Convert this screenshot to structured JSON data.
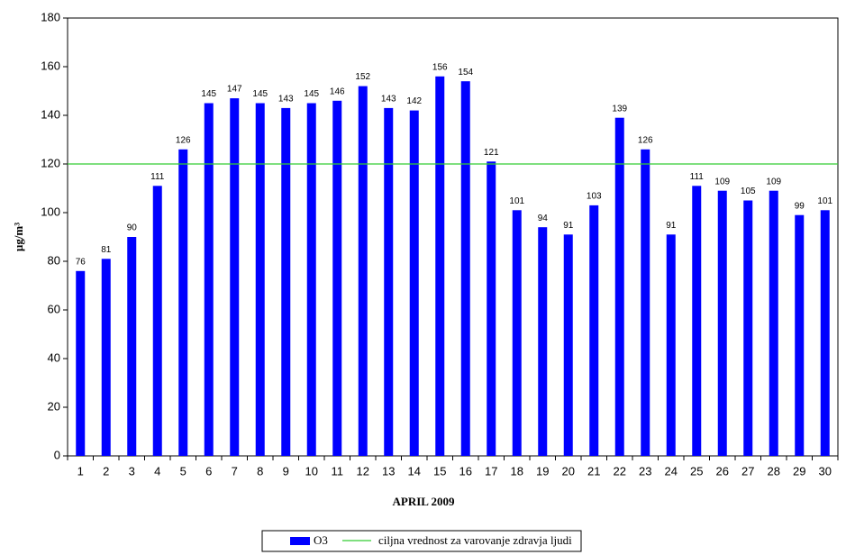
{
  "chart_data": {
    "type": "bar",
    "xlabel": "APRIL 2009",
    "ylabel": "µg/m³",
    "categories": [
      "1",
      "2",
      "3",
      "4",
      "5",
      "6",
      "7",
      "8",
      "9",
      "10",
      "11",
      "12",
      "13",
      "14",
      "15",
      "16",
      "17",
      "18",
      "19",
      "20",
      "21",
      "22",
      "23",
      "24",
      "25",
      "26",
      "27",
      "28",
      "29",
      "30"
    ],
    "series": [
      {
        "name": "O3",
        "color": "#0000ff",
        "values": [
          76,
          81,
          90,
          111,
          126,
          145,
          147,
          145,
          143,
          145,
          146,
          152,
          143,
          142,
          156,
          154,
          121,
          101,
          94,
          91,
          103,
          139,
          126,
          91,
          111,
          109,
          105,
          109,
          99,
          101
        ]
      }
    ],
    "reference_line": {
      "name": "ciljna vrednost za varovanje zdravja ljudi",
      "value": 120,
      "color": "#33cc33"
    },
    "ylim": [
      0,
      180
    ],
    "yticks": [
      0,
      20,
      40,
      60,
      80,
      100,
      120,
      140,
      160,
      180
    ],
    "legend": "bottom"
  }
}
